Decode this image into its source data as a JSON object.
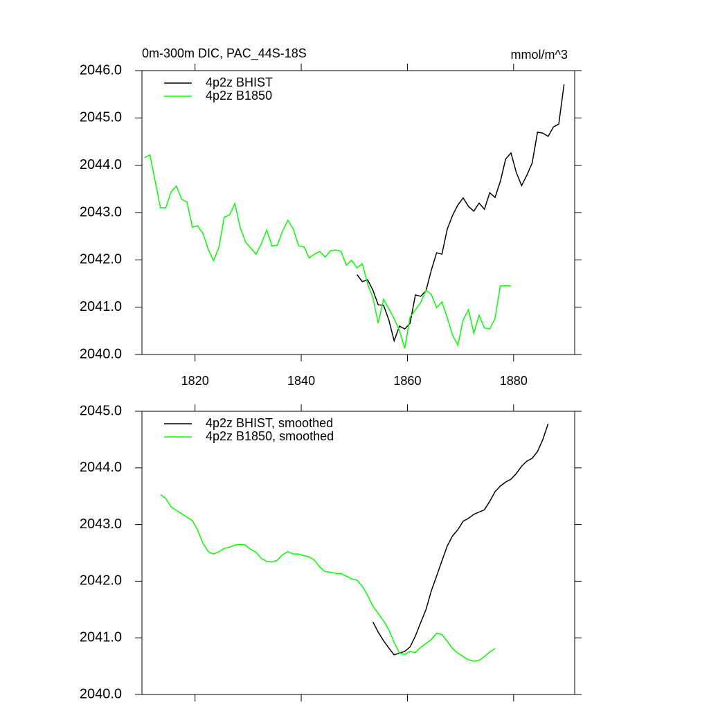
{
  "chart_data": [
    {
      "type": "line",
      "title": "0m-300m DIC, PAC_44S-18S",
      "units": "mmol/m^3",
      "xlim": [
        1810,
        1891.5
      ],
      "xticks": [
        1820,
        1840,
        1860,
        1880
      ],
      "ylim": [
        2040,
        2046
      ],
      "yticks": [
        {
          "value": 2040,
          "label": "2040.0"
        },
        {
          "value": 2041,
          "label": "2041.0"
        },
        {
          "value": 2042,
          "label": "2042.0"
        },
        {
          "value": 2043,
          "label": "2043.0"
        },
        {
          "value": 2044,
          "label": "2044.0"
        },
        {
          "value": 2045,
          "label": "2045.0"
        },
        {
          "value": 2046,
          "label": "2046.0"
        }
      ],
      "series": [
        {
          "name": "4p2z BHIST",
          "color": "#000000",
          "x": [
            1850.5,
            1851.5,
            1852.5,
            1853.5,
            1854.5,
            1855.5,
            1856.5,
            1857.5,
            1858.5,
            1859.5,
            1860.5,
            1861.5,
            1862.5,
            1863.5,
            1864.5,
            1865.5,
            1866.5,
            1867.5,
            1868.5,
            1869.5,
            1870.5,
            1871.5,
            1872.5,
            1873.5,
            1874.5,
            1875.5,
            1876.5,
            1877.5,
            1878.5,
            1879.5,
            1880.5,
            1881.5,
            1882.5,
            1883.5,
            1884.5,
            1885.5,
            1886.5,
            1887.5,
            1888.5,
            1889.5
          ],
          "values": [
            2041.69,
            2041.54,
            2041.58,
            2041.36,
            2041.05,
            2041.04,
            2040.73,
            2040.29,
            2040.6,
            2040.54,
            2040.66,
            2041.26,
            2041.23,
            2041.35,
            2041.78,
            2042.15,
            2042.12,
            2042.65,
            2042.94,
            2043.16,
            2043.31,
            2043.13,
            2043.03,
            2043.2,
            2043.07,
            2043.42,
            2043.32,
            2043.66,
            2044.13,
            2044.26,
            2043.85,
            2043.57,
            2043.79,
            2044.05,
            2044.7,
            2044.68,
            2044.61,
            2044.81,
            2044.87,
            2045.71
          ]
        },
        {
          "name": "4p2z B1850",
          "color": "#00ff00",
          "x": [
            1810.5,
            1811.5,
            1812.5,
            1813.5,
            1814.5,
            1815.5,
            1816.5,
            1817.5,
            1818.5,
            1819.5,
            1820.5,
            1821.5,
            1822.5,
            1823.5,
            1824.5,
            1825.5,
            1826.5,
            1827.5,
            1828.5,
            1829.5,
            1830.5,
            1831.5,
            1832.5,
            1833.5,
            1834.5,
            1835.5,
            1836.5,
            1837.5,
            1838.5,
            1839.5,
            1840.5,
            1841.5,
            1842.5,
            1843.5,
            1844.5,
            1845.5,
            1846.5,
            1847.5,
            1848.5,
            1849.5,
            1850.5,
            1851.5,
            1852.5,
            1853.5,
            1854.5,
            1855.5,
            1856.5,
            1857.5,
            1858.5,
            1859.5,
            1860.5,
            1861.5,
            1862.5,
            1863.5,
            1864.5,
            1865.5,
            1866.5,
            1867.5,
            1868.5,
            1869.5,
            1870.5,
            1871.5,
            1872.5,
            1873.5,
            1874.5,
            1875.5,
            1876.5,
            1877.5,
            1878.5,
            1879.5
          ],
          "values": [
            2044.16,
            2044.22,
            2043.66,
            2043.1,
            2043.1,
            2043.44,
            2043.56,
            2043.28,
            2043.22,
            2042.69,
            2042.72,
            2042.56,
            2042.22,
            2041.98,
            2042.27,
            2042.9,
            2042.95,
            2043.19,
            2042.69,
            2042.38,
            2042.25,
            2042.12,
            2042.34,
            2042.63,
            2042.29,
            2042.31,
            2042.61,
            2042.84,
            2042.65,
            2042.3,
            2042.28,
            2042.04,
            2042.12,
            2042.18,
            2042.06,
            2042.19,
            2042.21,
            2042.18,
            2041.89,
            2041.99,
            2041.83,
            2041.92,
            2041.49,
            2041.2,
            2040.66,
            2041.17,
            2040.97,
            2040.76,
            2040.51,
            2040.13,
            2040.79,
            2040.94,
            2041.1,
            2041.36,
            2041.27,
            2040.99,
            2041.11,
            2040.78,
            2040.41,
            2040.2,
            2040.73,
            2040.95,
            2040.45,
            2040.83,
            2040.56,
            2040.54,
            2040.76,
            2041.45,
            2041.45,
            2041.45
          ]
        }
      ]
    },
    {
      "type": "line",
      "xlim": [
        1810,
        1891.5
      ],
      "ylim": [
        2040,
        2045
      ],
      "yticks": [
        {
          "value": 2040,
          "label": "2040.0"
        },
        {
          "value": 2041,
          "label": "2041.0"
        },
        {
          "value": 2042,
          "label": "2042.0"
        },
        {
          "value": 2043,
          "label": "2043.0"
        },
        {
          "value": 2044,
          "label": "2044.0"
        },
        {
          "value": 2045,
          "label": "2045.0"
        }
      ],
      "series": [
        {
          "name": "4p2z BHIST, smoothed",
          "color": "#000000",
          "x": [
            1853.5,
            1854.5,
            1855.5,
            1856.5,
            1857.5,
            1858.5,
            1859.5,
            1860.5,
            1861.5,
            1862.5,
            1863.5,
            1864.5,
            1865.5,
            1866.5,
            1867.5,
            1868.5,
            1869.5,
            1870.5,
            1871.5,
            1872.5,
            1873.5,
            1874.5,
            1875.5,
            1876.5,
            1877.5,
            1878.5,
            1879.5,
            1880.5,
            1881.5,
            1882.5,
            1883.5,
            1884.5,
            1885.5,
            1886.5
          ],
          "values": [
            2041.28,
            2041.1,
            2040.95,
            2040.82,
            2040.7,
            2040.73,
            2040.76,
            2040.84,
            2041.03,
            2041.27,
            2041.5,
            2041.83,
            2042.09,
            2042.36,
            2042.62,
            2042.8,
            2042.91,
            2043.06,
            2043.11,
            2043.18,
            2043.22,
            2043.26,
            2043.41,
            2043.58,
            2043.68,
            2043.75,
            2043.8,
            2043.9,
            2044.03,
            2044.12,
            2044.17,
            2044.29,
            2044.5,
            2044.78
          ]
        },
        {
          "name": "4p2z B1850, smoothed",
          "color": "#00ff00",
          "x": [
            1813.5,
            1814.5,
            1815.5,
            1816.5,
            1817.5,
            1818.5,
            1819.5,
            1820.5,
            1821.5,
            1822.5,
            1823.5,
            1824.5,
            1825.5,
            1826.5,
            1827.5,
            1828.5,
            1829.5,
            1830.5,
            1831.5,
            1832.5,
            1833.5,
            1834.5,
            1835.5,
            1836.5,
            1837.5,
            1838.5,
            1839.5,
            1840.5,
            1841.5,
            1842.5,
            1843.5,
            1844.5,
            1845.5,
            1846.5,
            1847.5,
            1848.5,
            1849.5,
            1850.5,
            1851.5,
            1852.5,
            1853.5,
            1854.5,
            1855.5,
            1856.5,
            1857.5,
            1858.5,
            1859.5,
            1860.5,
            1861.5,
            1862.5,
            1863.5,
            1864.5,
            1865.5,
            1866.5,
            1867.5,
            1868.5,
            1869.5,
            1870.5,
            1871.5,
            1872.5,
            1873.5,
            1874.5,
            1875.5,
            1876.5
          ],
          "values": [
            2043.53,
            2043.46,
            2043.31,
            2043.25,
            2043.19,
            2043.13,
            2043.07,
            2042.9,
            2042.67,
            2042.52,
            2042.48,
            2042.52,
            2042.58,
            2042.6,
            2042.64,
            2042.65,
            2042.64,
            2042.56,
            2042.51,
            2042.4,
            2042.35,
            2042.34,
            2042.37,
            2042.47,
            2042.52,
            2042.48,
            2042.48,
            2042.45,
            2042.43,
            2042.37,
            2042.25,
            2042.17,
            2042.16,
            2042.14,
            2042.13,
            2042.09,
            2042.04,
            2042.02,
            2041.91,
            2041.75,
            2041.56,
            2041.43,
            2041.3,
            2041.14,
            2040.92,
            2040.73,
            2040.71,
            2040.76,
            2040.74,
            2040.83,
            2040.9,
            2040.97,
            2041.08,
            2041.06,
            2040.94,
            2040.81,
            2040.73,
            2040.67,
            2040.61,
            2040.59,
            2040.6,
            2040.67,
            2040.75,
            2040.81
          ]
        }
      ]
    }
  ]
}
